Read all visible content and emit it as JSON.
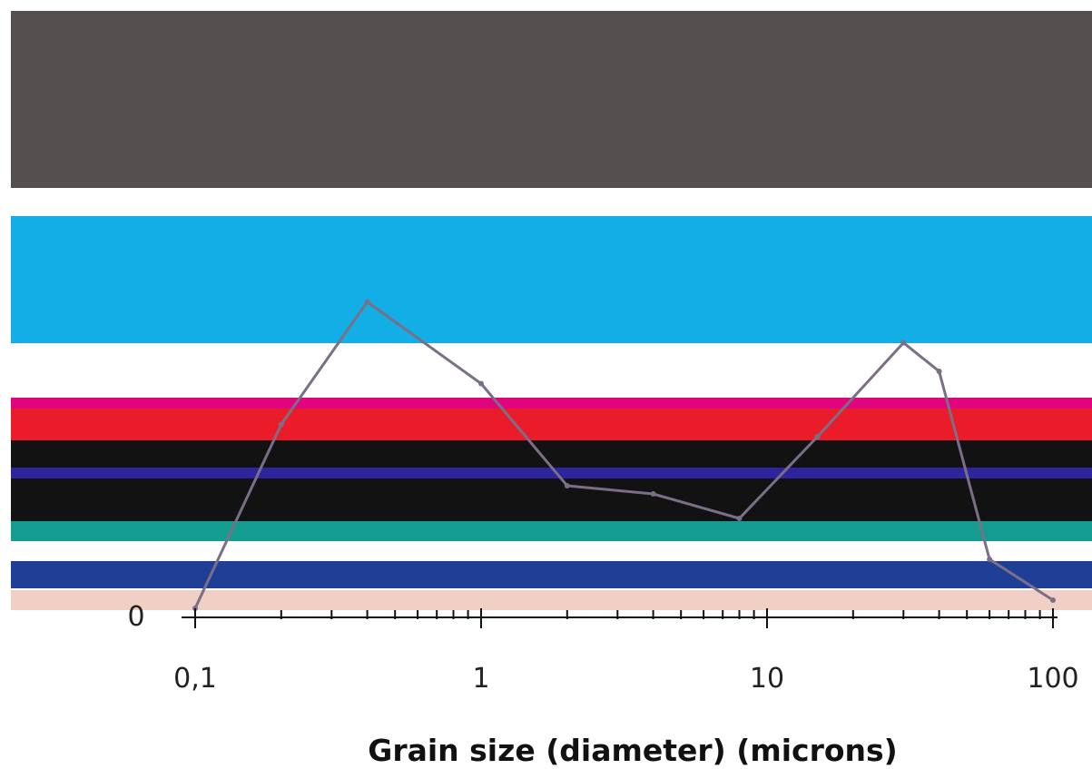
{
  "chart_data": {
    "type": "line",
    "title": "",
    "xlabel": "Grain size (diameter) (microns)",
    "ylabel": "",
    "x_scale": "log",
    "xlim": [
      0.1,
      100
    ],
    "x_ticks": [
      "0,1",
      "1",
      "10",
      "100"
    ],
    "y_visible_tick": "0",
    "grid": false,
    "legend": "none",
    "bands": [
      {
        "color": "#545050"
      },
      {
        "color": "#12aee5"
      },
      {
        "color": "#e1057d"
      },
      {
        "color": "#ea1c2a"
      },
      {
        "color": "#121212"
      },
      {
        "color": "#2d249e"
      },
      {
        "color": "#139c90"
      },
      {
        "color": "#1f3f97"
      },
      {
        "color": "#f0cfc4"
      }
    ],
    "series": [
      {
        "color": "#7a6f86",
        "x": [
          0.1,
          0.2,
          0.4,
          1,
          2,
          4,
          8,
          15,
          30,
          40,
          60,
          100
        ],
        "y": [
          0.0,
          0.45,
          0.75,
          0.55,
          0.3,
          0.28,
          0.22,
          0.42,
          0.65,
          0.58,
          0.12,
          0.02
        ]
      }
    ]
  }
}
